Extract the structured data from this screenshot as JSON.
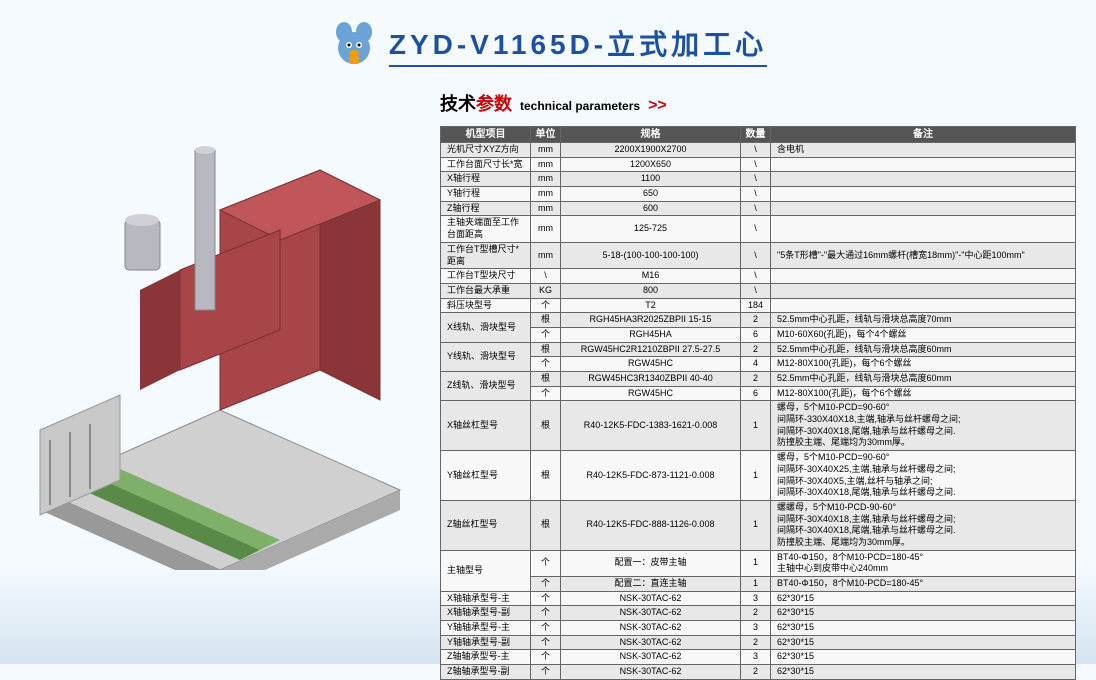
{
  "header": {
    "title": "ZYD-V1165D-立式加工心"
  },
  "subtitle": {
    "cn_black": "技术",
    "cn_red": "参数",
    "en": "technical parameters",
    "arrows": ">>"
  },
  "table": {
    "headers": [
      "机型项目",
      "单位",
      "规格",
      "数量",
      "备注"
    ],
    "rows": [
      {
        "item": "光机尺寸XYZ方向",
        "unit": "mm",
        "spec": "2200X1900X2700",
        "qty": "\\",
        "note": "含电机"
      },
      {
        "item": "工作台面尺寸长*宽",
        "unit": "mm",
        "spec": "1200X650",
        "qty": "\\",
        "note": ""
      },
      {
        "item": "X轴行程",
        "unit": "mm",
        "spec": "1100",
        "qty": "\\",
        "note": ""
      },
      {
        "item": "Y轴行程",
        "unit": "mm",
        "spec": "650",
        "qty": "\\",
        "note": ""
      },
      {
        "item": "Z轴行程",
        "unit": "mm",
        "spec": "600",
        "qty": "\\",
        "note": ""
      },
      {
        "item": "主轴夹端面至工作台面距高",
        "unit": "mm",
        "spec": "125-725",
        "qty": "\\",
        "note": ""
      },
      {
        "item": "工作台T型槽尺寸*距离",
        "unit": "mm",
        "spec": "5-18-(100-100-100-100)",
        "qty": "\\",
        "note": "\"5条T形槽\"-\"最大通过16mm螺杆(槽宽18mm)\"-\"中心距100mm\""
      },
      {
        "item": "工作台T型块尺寸",
        "unit": "\\",
        "spec": "M16",
        "qty": "\\",
        "note": ""
      },
      {
        "item": "工作台最大承重",
        "unit": "KG",
        "spec": "800",
        "qty": "\\",
        "note": ""
      },
      {
        "item": "斜压块型号",
        "unit": "个",
        "spec": "T2",
        "qty": "184",
        "note": ""
      },
      {
        "item": "X线轨、滑块型号",
        "unit": "根",
        "spec": "RGH45HA3R2025ZBPII 15-15",
        "qty": "2",
        "note": "52.5mm中心孔距，线轨与滑块总高度70mm",
        "rowspan": 2
      },
      {
        "item": "",
        "unit": "个",
        "spec": "RGH45HA",
        "qty": "6",
        "note": "M10-60X60(孔距)，每个4个螺丝",
        "skip": true
      },
      {
        "item": "Y线轨、滑块型号",
        "unit": "根",
        "spec": "RGW45HC2R1210ZBPII 27.5-27.5",
        "qty": "2",
        "note": "52.5mm中心孔距，线轨与滑块总高度60mm",
        "rowspan": 2
      },
      {
        "item": "",
        "unit": "个",
        "spec": "RGW45HC",
        "qty": "4",
        "note": "M12-80X100(孔距)，每个6个螺丝",
        "skip": true
      },
      {
        "item": "Z线轨、滑块型号",
        "unit": "根",
        "spec": "RGW45HC3R1340ZBPII 40-40",
        "qty": "2",
        "note": "52.5mm中心孔距，线轨与滑块总高度60mm",
        "rowspan": 2
      },
      {
        "item": "",
        "unit": "个",
        "spec": "RGW45HC",
        "qty": "6",
        "note": "M12-80X100(孔距)，每个6个螺丝",
        "skip": true
      },
      {
        "item": "X轴丝杠型号",
        "unit": "根",
        "spec": "R40-12K5-FDC-1383-1621-0.008",
        "qty": "1",
        "note": "螺母，5个M10-PCD=90-60°\n间隔环-330X40X18,主端,轴承与丝杆螺母之间;\n间隔环-30X40X18,尾端,轴承与丝杆螺母之间.\n防撞胶主端、尾端均为30mm厚。"
      },
      {
        "item": "Y轴丝杠型号",
        "unit": "根",
        "spec": "R40-12K5-FDC-873-1121-0.008",
        "qty": "1",
        "note": "螺母，5个M10-PCD=90-60°\n间隔环-30X40X25,主端,轴承与丝杆螺母之间;\n间隔环-30X40X5,主端,丝杆与轴承之间;\n间隔环-30X40X18,尾端,轴承与丝杆螺母之间."
      },
      {
        "item": "Z轴丝杠型号",
        "unit": "根",
        "spec": "R40-12K5-FDC-888-1126-0.008",
        "qty": "1",
        "note": "螺螺母，5个M10-PCD-90-60°\n间隔环-30X40X18,主端,轴承与丝杆螺母之间;\n间隔环-30X40X18,尾端,轴承与丝杆螺母之间.\n防撞胶主端、尾端均为30mm厚。"
      },
      {
        "item": "主轴型号",
        "unit": "个",
        "spec": "配置一：皮带主轴",
        "qty": "1",
        "note": "BT40-Φ150，8个M10-PCD=180-45°\n主轴中心到皮带中心240mm",
        "rowspan": 2
      },
      {
        "item": "",
        "unit": "个",
        "spec": "配置二：直连主轴",
        "qty": "1",
        "note": "BT40-Φ150，8个M10-PCD=180-45°",
        "skip": true
      },
      {
        "item": "X轴轴承型号-主",
        "unit": "个",
        "spec": "NSK-30TAC-62",
        "qty": "3",
        "note": "62*30*15"
      },
      {
        "item": "X轴轴承型号-副",
        "unit": "个",
        "spec": "NSK-30TAC-62",
        "qty": "2",
        "note": "62*30*15"
      },
      {
        "item": "Y轴轴承型号-主",
        "unit": "个",
        "spec": "NSK-30TAC-62",
        "qty": "3",
        "note": "62*30*15"
      },
      {
        "item": "Y轴轴承型号-副",
        "unit": "个",
        "spec": "NSK-30TAC-62",
        "qty": "2",
        "note": "62*30*15"
      },
      {
        "item": "Z轴轴承型号-主",
        "unit": "个",
        "spec": "NSK-30TAC-62",
        "qty": "3",
        "note": "62*30*15"
      },
      {
        "item": "Z轴轴承型号-副",
        "unit": "个",
        "spec": "NSK-30TAC-62",
        "qty": "2",
        "note": "62*30*15"
      }
    ]
  },
  "mascot_colors": {
    "body": "#6ba3d6",
    "ear": "#4a7bb0",
    "badge": "#f39c12"
  },
  "machine_colors": {
    "body": "#a84548",
    "rail": "#7fb069",
    "metal": "#b8b8c0"
  }
}
